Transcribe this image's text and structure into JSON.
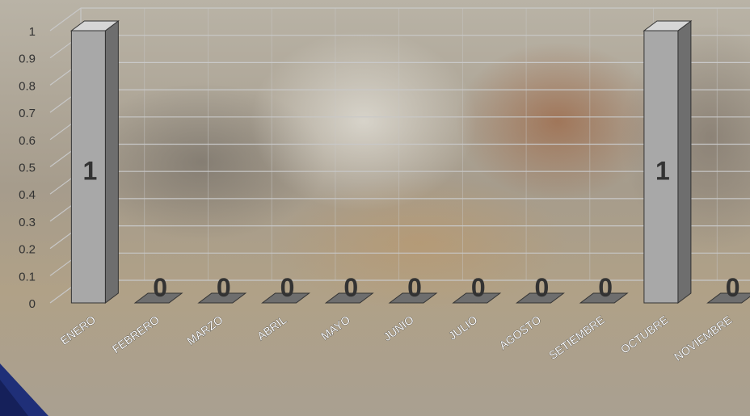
{
  "chart_data": {
    "type": "bar",
    "categories": [
      "ENERO",
      "FEBRERO",
      "MARZO",
      "ABRIL",
      "MAYO",
      "JUNIO",
      "JULIO",
      "AGOSTO",
      "SETIEMBRE",
      "OCTUBRE",
      "NOVIEMBRE"
    ],
    "values": [
      1,
      0,
      0,
      0,
      0,
      0,
      0,
      0,
      0,
      1,
      0
    ],
    "yticks": [
      "0",
      "0.1",
      "0.2",
      "0.3",
      "0.4",
      "0.5",
      "0.6",
      "0.7",
      "0.8",
      "0.9",
      "1"
    ],
    "ylim": [
      0,
      1
    ],
    "grid": true,
    "style": "3d-column",
    "colors": {
      "bar_front": "#a8a8a8",
      "bar_side": "#6e6e6e",
      "bar_top": "#d6d6d6",
      "grid": "#c8c8c8"
    }
  }
}
